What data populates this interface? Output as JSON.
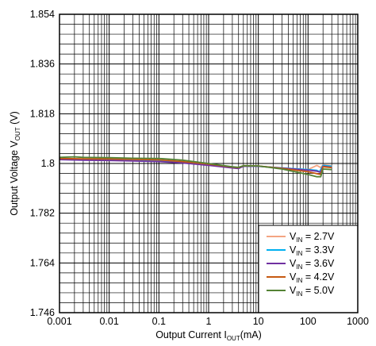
{
  "chart_data": {
    "type": "line",
    "xscale": "log",
    "xlim": [
      0.001,
      1000
    ],
    "ylim": [
      1.746,
      1.854
    ],
    "xticks": [
      "0.001",
      "0.01",
      "0.1",
      "1",
      "10",
      "100",
      "1000"
    ],
    "yticks": [
      "1.854",
      "1.836",
      "1.818",
      "1.8",
      "1.782",
      "1.764",
      "1.746"
    ],
    "xlabel": {
      "main": "Output Current I",
      "sub": "OUT",
      "tail": "(mA)"
    },
    "ylabel": {
      "main": "Output Voltage V",
      "sub": "OUT",
      "tail": " (V)"
    },
    "grid": true,
    "legend_position": "bottom-right",
    "series": [
      {
        "name": "2.7V",
        "label_main": "V",
        "label_sub": "IN",
        "label_tail": " = 2.7V",
        "color": "#F4A582",
        "x": [
          0.001,
          0.003,
          0.01,
          0.03,
          0.1,
          0.3,
          1,
          3,
          4,
          5,
          10,
          30,
          100,
          150,
          180,
          200,
          300
        ],
        "y": [
          1.8015,
          1.8013,
          1.8012,
          1.801,
          1.8008,
          1.8003,
          1.7995,
          1.7985,
          1.7983,
          1.799,
          1.799,
          1.7984,
          1.7978,
          1.7993,
          1.7985,
          1.7995,
          1.7992
        ]
      },
      {
        "name": "3.3V",
        "label_main": "V",
        "label_sub": "IN",
        "label_tail": " = 3.3V",
        "color": "#00B0F0",
        "x": [
          0.001,
          0.003,
          0.01,
          0.03,
          0.1,
          0.3,
          1,
          3,
          4,
          5,
          10,
          30,
          100,
          150,
          170,
          200,
          300
        ],
        "y": [
          1.8015,
          1.8013,
          1.8012,
          1.801,
          1.8008,
          1.8003,
          1.7995,
          1.7985,
          1.7983,
          1.799,
          1.799,
          1.7984,
          1.7978,
          1.7975,
          1.797,
          1.7993,
          1.799
        ]
      },
      {
        "name": "3.6V",
        "label_main": "V",
        "label_sub": "IN",
        "label_tail": " = 3.6V",
        "color": "#7030A0",
        "x": [
          0.001,
          0.003,
          0.01,
          0.03,
          0.1,
          0.3,
          1,
          3,
          4,
          5,
          10,
          30,
          100,
          150,
          180,
          200,
          300
        ],
        "y": [
          1.8014,
          1.8012,
          1.8011,
          1.8009,
          1.8007,
          1.8002,
          1.7993,
          1.7984,
          1.7982,
          1.799,
          1.799,
          1.7983,
          1.7976,
          1.7972,
          1.7968,
          1.799,
          1.7986
        ]
      },
      {
        "name": "4.2V",
        "label_main": "V",
        "label_sub": "IN",
        "label_tail": " = 4.2V",
        "color": "#C65911",
        "x": [
          0.001,
          0.003,
          0.01,
          0.03,
          0.1,
          0.3,
          1,
          3,
          4,
          5,
          10,
          30,
          100,
          150,
          180,
          200,
          300
        ],
        "y": [
          1.8018,
          1.8017,
          1.8016,
          1.8015,
          1.8013,
          1.8007,
          1.7998,
          1.7987,
          1.7985,
          1.7992,
          1.7991,
          1.7982,
          1.797,
          1.7963,
          1.796,
          1.7988,
          1.7985
        ]
      },
      {
        "name": "5.0V",
        "label_main": "V",
        "label_sub": "IN",
        "label_tail": " = 5.0V",
        "color": "#548235",
        "x": [
          0.001,
          0.002,
          0.003,
          0.01,
          0.03,
          0.1,
          0.3,
          1,
          3,
          4,
          5,
          10,
          30,
          100,
          150,
          180,
          200,
          300
        ],
        "y": [
          1.8022,
          1.8024,
          1.8022,
          1.8021,
          1.8019,
          1.8018,
          1.8012,
          1.8,
          1.7988,
          1.7986,
          1.7992,
          1.7991,
          1.798,
          1.796,
          1.7952,
          1.7952,
          1.798,
          1.7978
        ]
      }
    ]
  }
}
